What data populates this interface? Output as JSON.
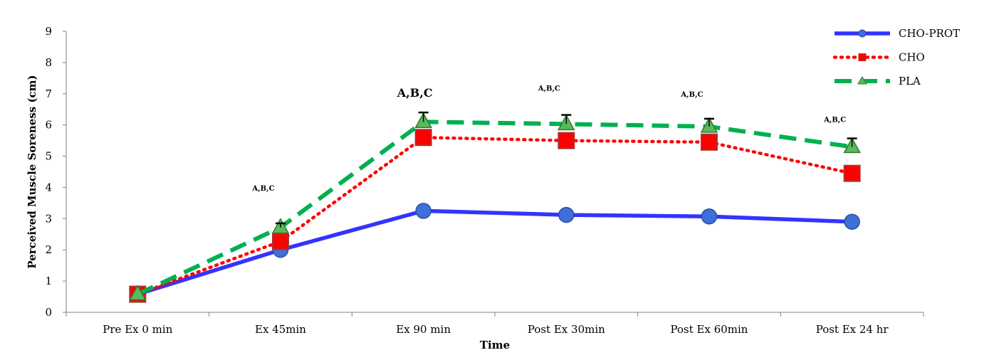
{
  "chart_data": {
    "type": "line",
    "xlabel": "Time",
    "ylabel": "Perceived Muscle Soreness (cm)",
    "ylim": [
      0,
      9
    ],
    "yticks": [
      0,
      1,
      2,
      3,
      4,
      5,
      6,
      7,
      8,
      9
    ],
    "categories": [
      "Pre Ex 0 min",
      "Ex 45min",
      "Ex 90 min",
      "Post Ex 30min",
      "Post Ex 60min",
      "Post Ex 24 hr"
    ],
    "grid": false,
    "legend_position": "top-right",
    "series": [
      {
        "name": "CHO-PROT",
        "values": [
          0.58,
          2.0,
          3.25,
          3.12,
          3.07,
          2.9
        ],
        "color": "#3333ff",
        "line_style": "solid",
        "marker": "circle",
        "marker_color": "#3f6fd8"
      },
      {
        "name": "CHO",
        "values": [
          0.58,
          2.27,
          5.6,
          5.5,
          5.45,
          4.45
        ],
        "color": "#ff0000",
        "line_style": "dotted",
        "marker": "square",
        "marker_color": "#ff0000"
      },
      {
        "name": "PLA",
        "values": [
          0.58,
          2.72,
          6.1,
          6.03,
          5.95,
          5.3
        ],
        "color": "#00b050",
        "line_style": "dashed",
        "marker": "triangle",
        "marker_color": "#5cb85c"
      }
    ],
    "error_bars": [
      {
        "category_index": 1,
        "top": 2.85
      },
      {
        "category_index": 2,
        "top": 6.4
      },
      {
        "category_index": 3,
        "top": 6.32
      },
      {
        "category_index": 4,
        "top": 6.2
      },
      {
        "category_index": 5,
        "top": 5.57
      }
    ],
    "annotations": [
      {
        "category_index": 1,
        "text": "A,B,C",
        "y": 3.9,
        "size": "small"
      },
      {
        "category_index": 2,
        "text": "A,B,C",
        "y": 6.9,
        "size": "large"
      },
      {
        "category_index": 3,
        "text": "A,B,C",
        "y": 7.1,
        "size": "small"
      },
      {
        "category_index": 4,
        "text": "A,B,C",
        "y": 6.9,
        "size": "small"
      },
      {
        "category_index": 5,
        "text": "A,B,C",
        "y": 6.1,
        "size": "small"
      }
    ]
  }
}
